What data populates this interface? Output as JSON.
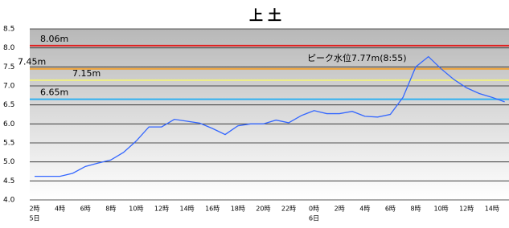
{
  "chart_data": {
    "type": "line",
    "title": "上 土",
    "annotation": "ピーク水位7.77m(8:55)",
    "categories": [
      "2時",
      null,
      "4時",
      null,
      "6時",
      null,
      "8時",
      null,
      "10時",
      null,
      "12時",
      null,
      "14時",
      null,
      "16時",
      null,
      "18時",
      null,
      "20時",
      null,
      "22時",
      null,
      "0時",
      null,
      "2時",
      null,
      "4時",
      null,
      "6時",
      null,
      "8時",
      null,
      "10時",
      null,
      "12時",
      null,
      "14時",
      null
    ],
    "day_labels": [
      "5日",
      null,
      null,
      null,
      null,
      null,
      null,
      null,
      null,
      null,
      null,
      null,
      null,
      null,
      null,
      null,
      null,
      null,
      null,
      null,
      null,
      null,
      "6日",
      null,
      null,
      null,
      null,
      null,
      null,
      null,
      null,
      null,
      null,
      null,
      null,
      null,
      null,
      null
    ],
    "series": [
      {
        "color": "#3366ff",
        "values": [
          4.62,
          4.62,
          4.62,
          4.7,
          4.88,
          4.97,
          5.05,
          5.25,
          5.55,
          5.92,
          5.92,
          6.12,
          6.07,
          6.02,
          5.88,
          5.72,
          5.95,
          6.0,
          6.0,
          6.1,
          6.03,
          6.22,
          6.35,
          6.27,
          6.27,
          6.33,
          6.2,
          6.18,
          6.25,
          6.7,
          7.5,
          7.77,
          7.45,
          7.17,
          6.95,
          6.8,
          6.7,
          6.58
        ]
      }
    ],
    "reference_lines": [
      {
        "value": 8.06,
        "label": "8.06m",
        "color": "#e02020"
      },
      {
        "value": 7.45,
        "label": "7.45m",
        "color": "#f0a030"
      },
      {
        "value": 7.15,
        "label": "7.15m",
        "color": "#f0f080"
      },
      {
        "value": 6.65,
        "label": "6.65m",
        "color": "#30b0f0"
      }
    ],
    "ylim": [
      4.0,
      8.5
    ],
    "yticks": [
      {
        "value": 4,
        "label": "4.0"
      },
      {
        "value": 4.5,
        "label": "4.5"
      },
      {
        "value": 5,
        "label": "5.0"
      },
      {
        "value": 5.5,
        "label": "5.5"
      },
      {
        "value": 6,
        "label": "6.0"
      },
      {
        "value": 6.5,
        "label": "6.5"
      },
      {
        "value": 7,
        "label": "7.0"
      },
      {
        "value": 7.5,
        "label": "7.5"
      },
      {
        "value": 8,
        "label": "8.0"
      },
      {
        "value": 8.5,
        "label": "8.5"
      }
    ],
    "grid": true
  }
}
